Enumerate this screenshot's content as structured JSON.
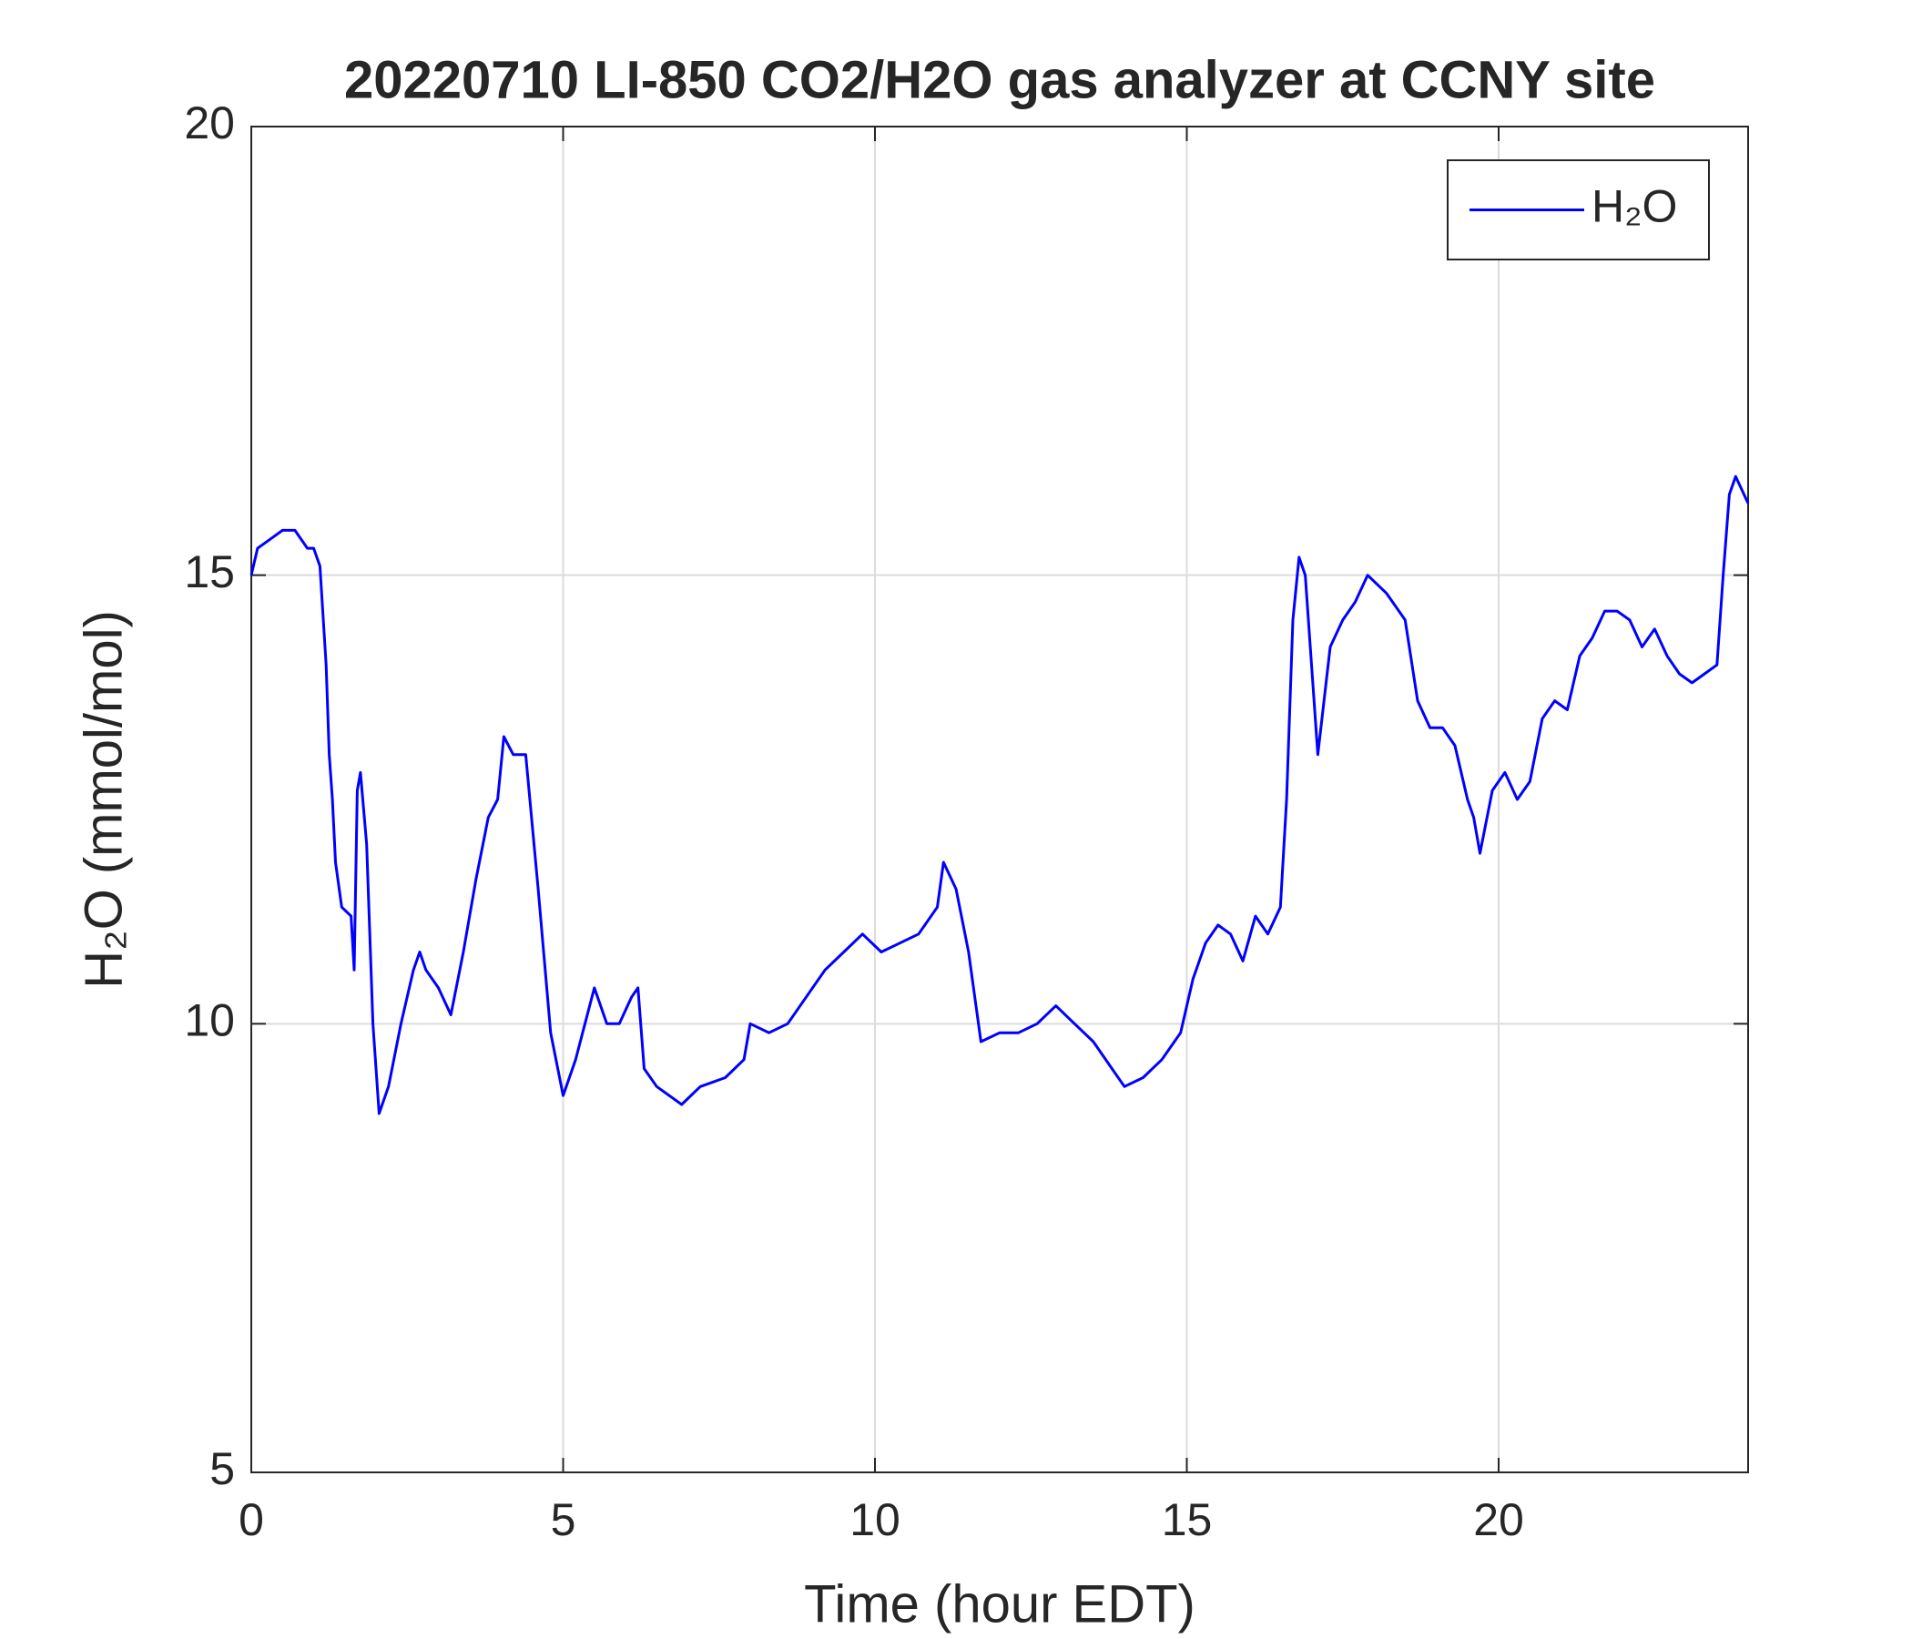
{
  "chart_data": {
    "type": "line",
    "title": "20220710 LI-850 CO2/H2O gas analyzer at CCNY site",
    "xlabel": "Time (hour EDT)",
    "ylabel": "H₂O (mmol/mol)",
    "x": [
      0,
      0.1,
      0.3,
      0.5,
      0.7,
      0.9,
      1.0,
      1.1,
      1.2,
      1.25,
      1.3,
      1.35,
      1.45,
      1.6,
      1.65,
      1.7,
      1.75,
      1.85,
      1.95,
      2.05,
      2.2,
      2.4,
      2.6,
      2.7,
      2.8,
      3.0,
      3.2,
      3.4,
      3.6,
      3.8,
      3.95,
      4.05,
      4.2,
      4.4,
      4.6,
      4.8,
      5.0,
      5.2,
      5.5,
      5.7,
      5.9,
      6.1,
      6.2,
      6.3,
      6.5,
      6.9,
      7.2,
      7.6,
      7.9,
      8.0,
      8.3,
      8.6,
      8.9,
      9.2,
      9.5,
      9.8,
      10.1,
      10.4,
      10.7,
      11.0,
      11.1,
      11.3,
      11.5,
      11.7,
      12.0,
      12.3,
      12.6,
      12.9,
      13.2,
      13.5,
      13.8,
      14.0,
      14.3,
      14.6,
      14.9,
      15.1,
      15.3,
      15.5,
      15.7,
      15.9,
      16.1,
      16.3,
      16.5,
      16.6,
      16.7,
      16.8,
      16.9,
      17.0,
      17.1,
      17.3,
      17.5,
      17.7,
      17.9,
      18.2,
      18.5,
      18.7,
      18.9,
      19.1,
      19.3,
      19.5,
      19.6,
      19.7,
      19.9,
      20.1,
      20.3,
      20.5,
      20.7,
      20.9,
      21.1,
      21.3,
      21.5,
      21.7,
      21.9,
      22.1,
      22.3,
      22.5,
      22.7,
      22.9,
      23.1,
      23.3,
      23.5,
      23.6,
      23.7,
      23.8,
      24.0
    ],
    "series": [
      {
        "name": "H₂O",
        "color": "#0000ff",
        "values": [
          15.0,
          15.3,
          15.4,
          15.5,
          15.5,
          15.3,
          15.3,
          15.1,
          14.0,
          13.0,
          12.5,
          11.8,
          11.3,
          11.2,
          10.6,
          12.6,
          12.8,
          12.0,
          10.0,
          9.0,
          9.3,
          10.0,
          10.6,
          10.8,
          10.6,
          10.4,
          10.1,
          10.8,
          11.6,
          12.3,
          12.5,
          13.2,
          13.0,
          13.0,
          11.5,
          9.9,
          9.2,
          9.6,
          10.4,
          10.0,
          10.0,
          10.3,
          10.4,
          9.5,
          9.3,
          9.1,
          9.3,
          9.4,
          9.6,
          10.0,
          9.9,
          10.0,
          10.3,
          10.6,
          10.8,
          11.0,
          10.8,
          10.9,
          11.0,
          11.3,
          11.8,
          11.5,
          10.8,
          9.8,
          9.9,
          9.9,
          10.0,
          10.2,
          10.0,
          9.8,
          9.5,
          9.3,
          9.4,
          9.6,
          9.9,
          10.5,
          10.9,
          11.1,
          11.0,
          10.7,
          11.2,
          11.0,
          11.3,
          12.5,
          14.5,
          15.2,
          15.0,
          14.0,
          13.0,
          14.2,
          14.5,
          14.7,
          15.0,
          14.8,
          14.5,
          13.6,
          13.3,
          13.3,
          13.1,
          12.5,
          12.3,
          11.9,
          12.6,
          12.8,
          12.5,
          12.7,
          13.4,
          13.6,
          13.5,
          14.1,
          14.3,
          14.6,
          14.6,
          14.5,
          14.2,
          14.4,
          14.1,
          13.9,
          13.8,
          13.9,
          14.0,
          15.0,
          15.9,
          16.1,
          15.8
        ]
      }
    ],
    "xlim": [
      0,
      24
    ],
    "xticks": [
      0,
      5,
      10,
      15,
      20
    ],
    "ylim": [
      5,
      20
    ],
    "yticks": [
      5,
      10,
      15,
      20
    ],
    "grid": true,
    "legend": "upper right"
  }
}
